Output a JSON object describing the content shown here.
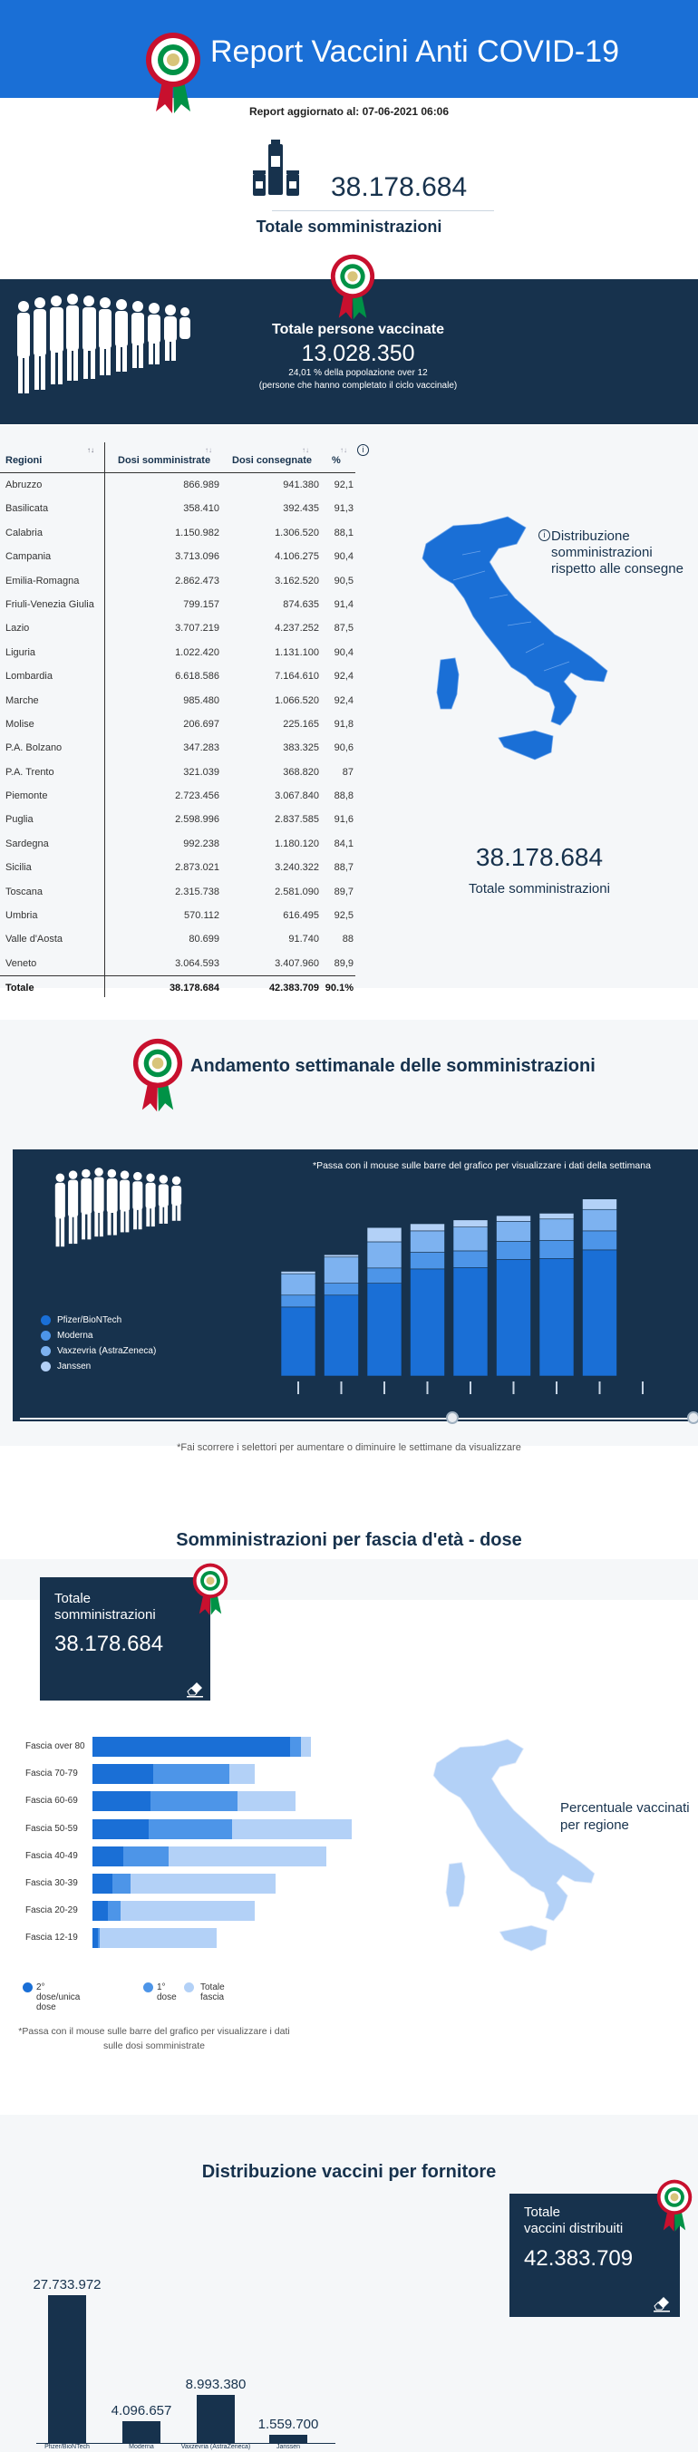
{
  "header": {
    "title": "Report Vaccini Anti COVID-19",
    "report_date": "Report aggiornato al: 07-06-2021 06:06"
  },
  "totale": {
    "value": "38.178.684",
    "label": "Totale somministrazioni"
  },
  "vaccinati": {
    "title": "Totale persone vaccinate",
    "value": "13.028.350",
    "pct": "24,01 % della popolazione over 12",
    "note": "(persone che hanno completato il ciclo vaccinale)"
  },
  "table": {
    "headers": [
      "Regioni",
      "Dosi somministrate",
      "Dosi consegnate",
      "%"
    ],
    "rows": [
      [
        "Abruzzo",
        "866.989",
        "941.380",
        "92,1"
      ],
      [
        "Basilicata",
        "358.410",
        "392.435",
        "91,3"
      ],
      [
        "Calabria",
        "1.150.982",
        "1.306.520",
        "88,1"
      ],
      [
        "Campania",
        "3.713.096",
        "4.106.275",
        "90,4"
      ],
      [
        "Emilia-Romagna",
        "2.862.473",
        "3.162.520",
        "90,5"
      ],
      [
        "Friuli-Venezia Giulia",
        "799.157",
        "874.635",
        "91,4"
      ],
      [
        "Lazio",
        "3.707.219",
        "4.237.252",
        "87,5"
      ],
      [
        "Liguria",
        "1.022.420",
        "1.131.100",
        "90,4"
      ],
      [
        "Lombardia",
        "6.618.586",
        "7.164.610",
        "92,4"
      ],
      [
        "Marche",
        "985.480",
        "1.066.520",
        "92,4"
      ],
      [
        "Molise",
        "206.697",
        "225.165",
        "91,8"
      ],
      [
        "P.A. Bolzano",
        "347.283",
        "383.325",
        "90,6"
      ],
      [
        "P.A. Trento",
        "321.039",
        "368.820",
        "87"
      ],
      [
        "Piemonte",
        "2.723.456",
        "3.067.840",
        "88,8"
      ],
      [
        "Puglia",
        "2.598.996",
        "2.837.585",
        "91,6"
      ],
      [
        "Sardegna",
        "992.238",
        "1.180.120",
        "84,1"
      ],
      [
        "Sicilia",
        "2.873.021",
        "3.240.322",
        "88,7"
      ],
      [
        "Toscana",
        "2.315.738",
        "2.581.090",
        "89,7"
      ],
      [
        "Umbria",
        "570.112",
        "616.495",
        "92,5"
      ],
      [
        "Valle d'Aosta",
        "80.699",
        "91.740",
        "88"
      ],
      [
        "Veneto",
        "3.064.593",
        "3.407.960",
        "89,9"
      ]
    ],
    "total": [
      "Totale",
      "38.178.684",
      "42.383.709",
      "90.1%"
    ],
    "sort_glyph": "↑↓"
  },
  "map_distribuzione": {
    "label_l1": "Distribuzione",
    "label_l2": "somministrazioni",
    "label_l3": "rispetto alle consegne",
    "info_glyph": "i",
    "total_value": "38.178.684",
    "total_label": "Totale somministrazioni"
  },
  "weekly": {
    "title": "Andamento settimanale delle somministrazioni",
    "hint": "*Passa con il mouse sulle barre del grafico per visualizzare i dati della settimana",
    "legend": [
      "Pfizer/BioNTech",
      "Moderna",
      "Vaxzevria (AstraZeneca)",
      "Janssen"
    ],
    "colors": [
      "#1a6fd6",
      "#4d95e8",
      "#7db2f0",
      "#b3d1f7"
    ],
    "note": "*Fai scorrere i selettori per aumentare o diminuire le settimane da visualizzare"
  },
  "chart_data": [
    {
      "type": "bar",
      "title": "Andamento settimanale delle somministrazioni",
      "categories": [
        "",
        "",
        "",
        "",
        "",
        "",
        "",
        "",
        ""
      ],
      "series": [
        {
          "name": "Pfizer/BioNTech",
          "values": [
            1.45,
            1.7,
            1.95,
            2.25,
            2.28,
            2.45,
            2.47,
            2.65,
            0
          ]
        },
        {
          "name": "Moderna",
          "values": [
            0.25,
            0.25,
            0.32,
            0.35,
            0.35,
            0.38,
            0.38,
            0.4,
            0
          ]
        },
        {
          "name": "Vaxzevria (AstraZeneca)",
          "values": [
            0.45,
            0.55,
            0.55,
            0.45,
            0.5,
            0.42,
            0.45,
            0.45,
            0
          ]
        },
        {
          "name": "Janssen",
          "values": [
            0.05,
            0.05,
            0.3,
            0.15,
            0.15,
            0.12,
            0.12,
            0.22,
            0
          ]
        }
      ],
      "stacked": true,
      "ylim": [
        0,
        4
      ]
    },
    {
      "type": "bar",
      "title": "Somministrazioni per fascia d'età - dose",
      "orientation": "horizontal",
      "categories": [
        "Fascia over 80",
        "Fascia 70-79",
        "Fascia 60-69",
        "Fascia 50-59",
        "Fascia 40-49",
        "Fascia 30-39",
        "Fascia 20-29",
        "Fascia 12-19"
      ],
      "series": [
        {
          "name": "2° dose/unica dose",
          "values": [
            3.9,
            1.2,
            1.15,
            1.1,
            0.6,
            0.4,
            0.3,
            0.1
          ]
        },
        {
          "name": "1° dose",
          "values": [
            0.2,
            1.5,
            1.7,
            1.65,
            0.9,
            0.35,
            0.25,
            0.05
          ]
        },
        {
          "name": "Totale fascia",
          "values": [
            4.3,
            3.2,
            4.0,
            5.1,
            4.6,
            3.6,
            3.2,
            2.45
          ]
        }
      ],
      "xlim": [
        0,
        5.2
      ]
    },
    {
      "type": "bar",
      "title": "Distribuzione vaccini per fornitore",
      "categories": [
        "Pfizer/BioNTech",
        "Moderna",
        "Vaxzevria (AstraZeneca)",
        "Janssen"
      ],
      "values": [
        27733972,
        4096657,
        8993380,
        1559700
      ],
      "data_labels": [
        "27.733.972",
        "4.096.657",
        "8.993.380",
        "1.559.700"
      ],
      "ylim": [
        0,
        30000000
      ]
    }
  ],
  "age": {
    "title": "Somministrazioni per fascia d'età - dose",
    "box_l1": "Totale",
    "box_l2": "somministrazioni",
    "box_value": "38.178.684",
    "legend": [
      "2° dose/unica dose",
      "1° dose",
      "Totale fascia"
    ],
    "colors": [
      "#1a6fd6",
      "#4d95e8",
      "#b3d1f7"
    ],
    "note": "*Passa con il mouse sulle barre del grafico per visualizzare i dati sulle dosi somministrate",
    "map_l1": "Percentuale vaccinati",
    "map_l2": "per regione"
  },
  "supplier": {
    "title": "Distribuzione vaccini per fornitore",
    "box_l1": "Totale",
    "box_l2": "vaccini distribuiti",
    "box_value": "42.383.709"
  }
}
